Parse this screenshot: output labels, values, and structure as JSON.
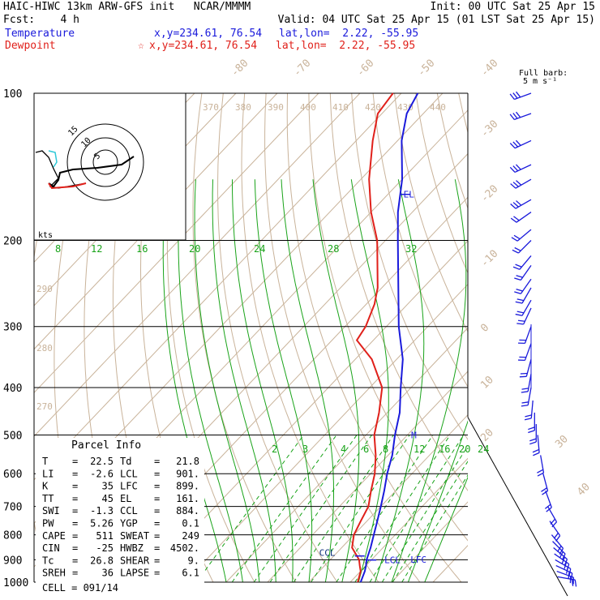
{
  "header": {
    "line1_left": "HAIC-HIWC 13km ARW-GFS init   NCAR/MMMM",
    "line1_right": "Init: 00 UTC Sat 25 Apr 15",
    "line2_left": "Fcst:    4 h",
    "line2_right": "Valid: 04 UTC Sat 25 Apr 15 (01 LST Sat 25 Apr 15)",
    "temp_label": "Temperature",
    "temp_xy": "x,y=234.61, 76.54",
    "temp_latlon": "lat,lon=  2.22, -55.95",
    "dew_label": "Dewpoint",
    "dew_marker": "☆",
    "dew_xy": "x,y=234.61, 76.54",
    "dew_latlon": "lat,lon=  2.22, -55.95"
  },
  "barb_legend": {
    "line1": "Full barb:",
    "line2": "5 m s⁻¹"
  },
  "colors": {
    "temperature": "#1a1adb",
    "dewpoint": "#e0201a",
    "isotherm": "#c9b39a",
    "mixing_ratio": "#19a319",
    "moist_adiabat": "#19a319",
    "isobar": "#000000"
  },
  "chart_data": {
    "type": "line",
    "title": "Skew-T log-P sounding",
    "y_axis": {
      "scale": "log",
      "units": "hPa",
      "ticks": [
        "100",
        "200",
        "300",
        "400",
        "500",
        "600",
        "700",
        "800",
        "900",
        "1000"
      ],
      "range": [
        100,
        1000
      ]
    },
    "isotherm_labels": [
      "-80",
      "-70",
      "-60",
      "-50",
      "-40",
      "-30",
      "-20",
      "-10",
      "0",
      "10",
      "20",
      "30",
      "40"
    ],
    "theta_labels_top": [
      "370",
      "380",
      "390",
      "400",
      "410",
      "420",
      "430",
      "440"
    ],
    "theta_labels_left": [
      "290",
      "280",
      "270"
    ],
    "mixing_ratio_labels_upper": [
      "8",
      "12",
      "16",
      "20",
      "24",
      "28",
      "32"
    ],
    "mixing_ratio_labels_lower": [
      "2",
      "3",
      "4",
      "6",
      "8",
      "12",
      "16",
      "20",
      "24"
    ],
    "series": [
      {
        "name": "Temperature",
        "color": "#1a1adb",
        "points": [
          {
            "p": 1000,
            "t": 22.5
          },
          {
            "p": 950,
            "t": 21.0
          },
          {
            "p": 925,
            "t": 20.0
          },
          {
            "p": 900,
            "t": 18.8
          },
          {
            "p": 850,
            "t": 17.0
          },
          {
            "p": 800,
            "t": 14.8
          },
          {
            "p": 750,
            "t": 12.5
          },
          {
            "p": 700,
            "t": 10.0
          },
          {
            "p": 650,
            "t": 7.2
          },
          {
            "p": 600,
            "t": 4.0
          },
          {
            "p": 550,
            "t": 1.0
          },
          {
            "p": 500,
            "t": -3.0
          },
          {
            "p": 450,
            "t": -7.0
          },
          {
            "p": 400,
            "t": -12.5
          },
          {
            "p": 350,
            "t": -18.5
          },
          {
            "p": 300,
            "t": -27.0
          },
          {
            "p": 250,
            "t": -36.0
          },
          {
            "p": 200,
            "t": -47.0
          },
          {
            "p": 175,
            "t": -53.5
          },
          {
            "p": 150,
            "t": -60.0
          },
          {
            "p": 125,
            "t": -69.0
          },
          {
            "p": 110,
            "t": -74.0
          },
          {
            "p": 100,
            "t": -76.0
          }
        ]
      },
      {
        "name": "Dewpoint",
        "color": "#e0201a",
        "points": [
          {
            "p": 1000,
            "t": 21.8
          },
          {
            "p": 950,
            "t": 20.0
          },
          {
            "p": 925,
            "t": 18.5
          },
          {
            "p": 900,
            "t": 17.0
          },
          {
            "p": 850,
            "t": 12.5
          },
          {
            "p": 800,
            "t": 10.0
          },
          {
            "p": 750,
            "t": 8.5
          },
          {
            "p": 700,
            "t": 7.0
          },
          {
            "p": 650,
            "t": 4.0
          },
          {
            "p": 600,
            "t": 1.0
          },
          {
            "p": 550,
            "t": -3.0
          },
          {
            "p": 500,
            "t": -8.0
          },
          {
            "p": 450,
            "t": -12.0
          },
          {
            "p": 400,
            "t": -17.0
          },
          {
            "p": 350,
            "t": -26.0
          },
          {
            "p": 320,
            "t": -34.0
          },
          {
            "p": 300,
            "t": -35.0
          },
          {
            "p": 270,
            "t": -38.0
          },
          {
            "p": 250,
            "t": -41.0
          },
          {
            "p": 200,
            "t": -52.0
          },
          {
            "p": 175,
            "t": -60.0
          },
          {
            "p": 150,
            "t": -68.0
          },
          {
            "p": 125,
            "t": -76.0
          },
          {
            "p": 110,
            "t": -81.0
          },
          {
            "p": 100,
            "t": -82.0
          }
        ]
      }
    ],
    "annotations": [
      {
        "text": "EL",
        "p": 161,
        "series": "Temperature"
      },
      {
        "text": "M",
        "p": 500,
        "series": "Temperature"
      },
      {
        "text": "CCL",
        "p": 884,
        "series": "Temperature"
      },
      {
        "text": "LCL",
        "p": 901,
        "series": "Temperature"
      },
      {
        "text": "LFC",
        "p": 899,
        "series": "Temperature"
      }
    ],
    "wind_barbs": {
      "pressures": [
        100,
        110,
        125,
        140,
        150,
        165,
        175,
        190,
        200,
        215,
        225,
        240,
        250,
        265,
        275,
        300,
        325,
        350,
        375,
        400,
        425,
        450,
        475,
        500,
        550,
        600,
        650,
        700,
        750,
        800,
        825,
        850,
        875,
        900,
        925,
        950,
        975
      ],
      "directions_deg": [
        250,
        250,
        245,
        245,
        240,
        240,
        235,
        230,
        225,
        220,
        215,
        215,
        210,
        210,
        205,
        200,
        200,
        195,
        190,
        190,
        185,
        180,
        180,
        175,
        170,
        165,
        160,
        150,
        145,
        140,
        135,
        130,
        125,
        120,
        115,
        110,
        100
      ],
      "speeds_ms": [
        25,
        25,
        20,
        20,
        15,
        15,
        10,
        10,
        10,
        10,
        10,
        10,
        10,
        10,
        10,
        10,
        10,
        10,
        10,
        10,
        10,
        10,
        10,
        10,
        10,
        10,
        10,
        10,
        10,
        10,
        10,
        10,
        10,
        10,
        10,
        10,
        10
      ]
    },
    "hodograph": {
      "rings": [
        "5",
        "10",
        "15"
      ],
      "units_label": "kts"
    }
  },
  "parcel_info": {
    "title": "Parcel Info",
    "rows": [
      {
        "k1": "T",
        "v1": "22.5",
        "k2": "Td",
        "v2": "21.8"
      },
      {
        "k1": "LI",
        "v1": "-2.6",
        "k2": "LCL",
        "v2": "901."
      },
      {
        "k1": "K",
        "v1": "35",
        "k2": "LFC",
        "v2": "899."
      },
      {
        "k1": "TT",
        "v1": "45",
        "k2": "EL",
        "v2": "161."
      },
      {
        "k1": "SWI",
        "v1": "-1.3",
        "k2": "CCL",
        "v2": "884."
      },
      {
        "k1": "PW",
        "v1": "5.26",
        "k2": "YGP",
        "v2": "0.1"
      },
      {
        "k1": "CAPE",
        "v1": "511",
        "k2": "SWEAT",
        "v2": "249"
      },
      {
        "k1": "CIN",
        "v1": "-25",
        "k2": "HWBZ",
        "v2": "4502."
      },
      {
        "k1": "Tc",
        "v1": "26.8",
        "k2": "SHEAR",
        "v2": "9."
      },
      {
        "k1": "SREH",
        "v1": "36",
        "k2": "LAPSE",
        "v2": "6.1"
      }
    ],
    "cell": "CELL = 091/14"
  }
}
